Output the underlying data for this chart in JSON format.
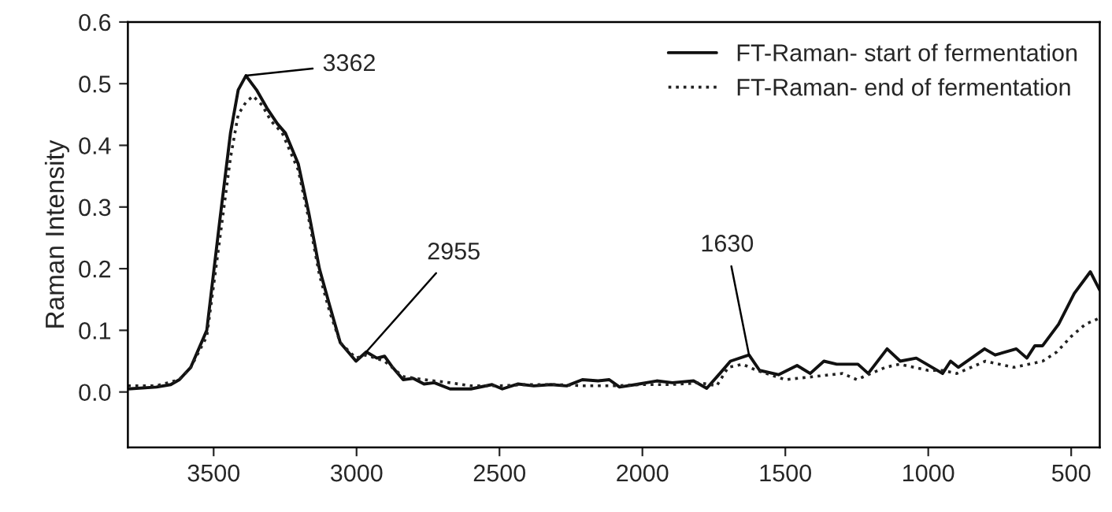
{
  "chart_data": {
    "type": "line",
    "ylabel": "Raman Intensity",
    "xlim": [
      3800,
      400
    ],
    "xticks": [
      3500,
      3000,
      2500,
      2000,
      1500,
      1000,
      500
    ],
    "ylim": [
      -0.09,
      0.6
    ],
    "yticks": [
      {
        "value": 0,
        "label": "0.0"
      },
      0.1,
      0.2,
      0.3,
      0.4,
      0.5,
      0.6
    ],
    "grid": false,
    "legend": "top right",
    "marker": "none",
    "series": [
      {
        "name": "FT-Raman- start of fermentation",
        "color": "#111111",
        "line_style": "solid",
        "x": [
          3800,
          3700,
          3650,
          3620,
          3580,
          3524,
          3478,
          3441,
          3414,
          3387,
          3350,
          3313,
          3277,
          3249,
          3204,
          3167,
          3130,
          3094,
          3057,
          3002,
          2966,
          2929,
          2902,
          2874,
          2837,
          2801,
          2764,
          2728,
          2673,
          2600,
          2526,
          2490,
          2435,
          2380,
          2320,
          2265,
          2210,
          2155,
          2116,
          2080,
          2024,
          1950,
          1895,
          1821,
          1775,
          1729,
          1692,
          1627,
          1590,
          1524,
          1459,
          1413,
          1365,
          1320,
          1246,
          1210,
          1144,
          1098,
          1042,
          950,
          922,
          895,
          803,
          766,
          692,
          655,
          627,
          600,
          544,
          489,
          433,
          400
        ],
        "values": [
          0.005,
          0.008,
          0.012,
          0.02,
          0.04,
          0.1,
          0.28,
          0.42,
          0.49,
          0.513,
          0.49,
          0.46,
          0.435,
          0.42,
          0.37,
          0.29,
          0.2,
          0.14,
          0.08,
          0.05,
          0.065,
          0.055,
          0.058,
          0.04,
          0.02,
          0.022,
          0.013,
          0.015,
          0.005,
          0.005,
          0.012,
          0.005,
          0.013,
          0.01,
          0.012,
          0.01,
          0.02,
          0.018,
          0.02,
          0.008,
          0.012,
          0.018,
          0.015,
          0.018,
          0.006,
          0.03,
          0.05,
          0.06,
          0.035,
          0.028,
          0.043,
          0.03,
          0.05,
          0.045,
          0.045,
          0.03,
          0.07,
          0.05,
          0.055,
          0.03,
          0.05,
          0.04,
          0.07,
          0.06,
          0.07,
          0.055,
          0.075,
          0.075,
          0.11,
          0.16,
          0.195,
          0.165
        ]
      },
      {
        "name": "FT-Raman- end of fermentation",
        "color": "#222222",
        "line_style": "dotted",
        "x": [
          3800,
          3700,
          3620,
          3580,
          3524,
          3478,
          3441,
          3414,
          3387,
          3362,
          3330,
          3300,
          3260,
          3204,
          3167,
          3130,
          3094,
          3057,
          3002,
          2966,
          2902,
          2837,
          2764,
          2673,
          2600,
          2500,
          2400,
          2300,
          2200,
          2100,
          2000,
          1900,
          1800,
          1740,
          1700,
          1650,
          1600,
          1500,
          1400,
          1300,
          1250,
          1150,
          1100,
          1050,
          1000,
          950,
          900,
          800,
          700,
          600,
          550,
          500,
          450,
          400
        ],
        "values": [
          0.01,
          0.01,
          0.02,
          0.04,
          0.09,
          0.25,
          0.38,
          0.45,
          0.47,
          0.48,
          0.465,
          0.44,
          0.42,
          0.36,
          0.28,
          0.19,
          0.13,
          0.08,
          0.055,
          0.06,
          0.05,
          0.025,
          0.02,
          0.015,
          0.01,
          0.01,
          0.012,
          0.012,
          0.01,
          0.01,
          0.012,
          0.012,
          0.015,
          0.01,
          0.04,
          0.045,
          0.035,
          0.02,
          0.025,
          0.03,
          0.02,
          0.04,
          0.045,
          0.04,
          0.035,
          0.035,
          0.03,
          0.05,
          0.04,
          0.05,
          0.065,
          0.09,
          0.11,
          0.12
        ]
      }
    ],
    "annotations": [
      {
        "text": "3362",
        "x": 3387,
        "y": 0.513
      },
      {
        "text": "2955",
        "x": 2966,
        "y": 0.065
      },
      {
        "text": "1630",
        "x": 1627,
        "y": 0.06
      }
    ]
  }
}
